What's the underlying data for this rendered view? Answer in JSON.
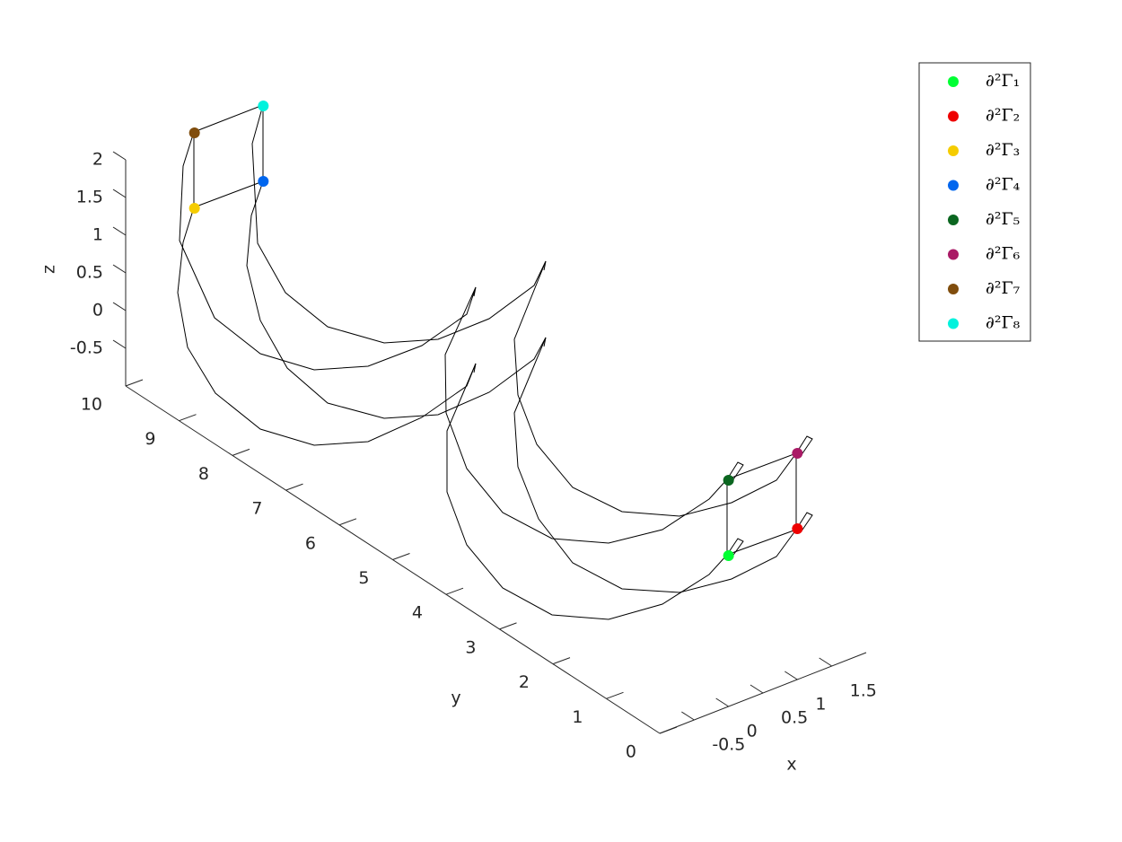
{
  "chart_data": {
    "type": "scatter3d",
    "xlabel": "x",
    "ylabel": "y",
    "zlabel": "z",
    "xlim": [
      -1,
      2
    ],
    "xticks": [
      -0.5,
      0,
      0.5,
      1,
      1.5
    ],
    "ylim": [
      0,
      10
    ],
    "yticks": [
      0,
      1,
      2,
      3,
      4,
      5,
      6,
      7,
      8,
      9,
      10
    ],
    "zlim": [
      -1,
      2
    ],
    "zticks": [
      -0.5,
      0,
      0.5,
      1,
      1.5,
      2
    ],
    "legend": "upper right",
    "series": [
      {
        "name": "∂²Γ₁",
        "color": "#00ff33",
        "x": [
          0
        ],
        "y": [
          0
        ],
        "z": [
          1
        ]
      },
      {
        "name": "∂²Γ₂",
        "color": "#ee0000",
        "x": [
          1
        ],
        "y": [
          0
        ],
        "z": [
          1
        ]
      },
      {
        "name": "∂²Γ₃",
        "color": "#f5cc00",
        "x": [
          0
        ],
        "y": [
          10
        ],
        "z": [
          1
        ]
      },
      {
        "name": "∂²Γ₄",
        "color": "#0066ee",
        "x": [
          1
        ],
        "y": [
          10
        ],
        "z": [
          1
        ]
      },
      {
        "name": "∂²Γ₅",
        "color": "#0b6620",
        "x": [
          0
        ],
        "y": [
          0
        ],
        "z": [
          2
        ]
      },
      {
        "name": "∂²Γ₆",
        "color": "#aa1a66",
        "x": [
          1
        ],
        "y": [
          0
        ],
        "z": [
          2
        ]
      },
      {
        "name": "∂²Γ₇",
        "color": "#804d0d",
        "x": [
          0
        ],
        "y": [
          10
        ],
        "z": [
          2
        ]
      },
      {
        "name": "∂²Γ₈",
        "color": "#00f2dd",
        "x": [
          1
        ],
        "y": [
          10
        ],
        "z": [
          2
        ]
      }
    ]
  }
}
